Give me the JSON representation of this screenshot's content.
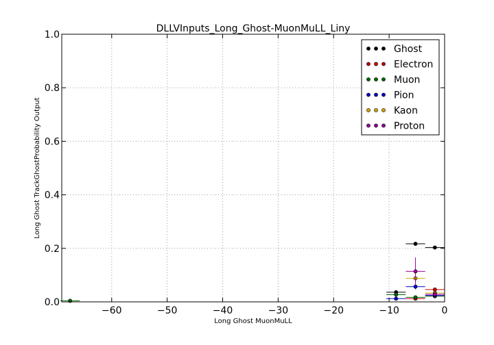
{
  "chart_data": {
    "type": "scatter",
    "title": "DLLVInputs_Long_Ghost-MuonMuLL_Liny",
    "xlabel": "Long Ghost MuonMuLL",
    "ylabel": "Long Ghost TrackGhostProbability Output",
    "xlim": [
      -69,
      0
    ],
    "ylim": [
      0,
      1.0
    ],
    "x_ticks": [
      -60,
      -50,
      -40,
      -30,
      -20,
      -10,
      0
    ],
    "x_tick_labels": [
      "−60",
      "−50",
      "−40",
      "−30",
      "−20",
      "−10",
      "0"
    ],
    "y_ticks": [
      0.0,
      0.2,
      0.4,
      0.6,
      0.8,
      1.0
    ],
    "y_tick_labels": [
      "0.0",
      "0.2",
      "0.4",
      "0.6",
      "0.8",
      "1.0"
    ],
    "grid": true,
    "legend_position": "top-right",
    "series": [
      {
        "name": "Ghost",
        "color": "#000000",
        "points": [
          {
            "x": -8.75,
            "xerr": 1.75,
            "y": 0.036,
            "yerr": 0.005
          },
          {
            "x": -5.25,
            "xerr": 1.75,
            "y": 0.217,
            "yerr": 0.003
          },
          {
            "x": -1.75,
            "xerr": 1.75,
            "y": 0.203,
            "yerr": 0.002
          }
        ]
      },
      {
        "name": "Electron",
        "color": "#cc0000",
        "points": [
          {
            "x": -5.25,
            "xerr": 1.75,
            "y": 0.012,
            "yerr": 0.004
          },
          {
            "x": -1.75,
            "xerr": 1.75,
            "y": 0.046,
            "yerr": 0.005
          }
        ]
      },
      {
        "name": "Muon",
        "color": "#006600",
        "points": [
          {
            "x": -67.5,
            "xerr": 1.75,
            "y": 0.004,
            "yerr": 0.002
          },
          {
            "x": -8.75,
            "xerr": 1.75,
            "y": 0.027,
            "yerr": 0.004
          },
          {
            "x": -5.25,
            "xerr": 1.75,
            "y": 0.017,
            "yerr": 0.003
          },
          {
            "x": -1.75,
            "xerr": 1.75,
            "y": 0.021,
            "yerr": 0.003
          }
        ]
      },
      {
        "name": "Pion",
        "color": "#0000cc",
        "points": [
          {
            "x": -8.75,
            "xerr": 1.75,
            "y": 0.012,
            "yerr": 0.004
          },
          {
            "x": -5.25,
            "xerr": 1.75,
            "y": 0.057,
            "yerr": 0.01
          },
          {
            "x": -1.75,
            "xerr": 1.75,
            "y": 0.024,
            "yerr": 0.004
          }
        ]
      },
      {
        "name": "Kaon",
        "color": "#ccaa00",
        "points": [
          {
            "x": -5.25,
            "xerr": 1.75,
            "y": 0.088,
            "yerr": 0.02
          },
          {
            "x": -1.75,
            "xerr": 1.75,
            "y": 0.033,
            "yerr": 0.006
          }
        ]
      },
      {
        "name": "Proton",
        "color": "#990099",
        "points": [
          {
            "x": -5.25,
            "xerr": 1.75,
            "y": 0.114,
            "yerr": 0.052
          },
          {
            "x": -1.75,
            "xerr": 1.75,
            "y": 0.028,
            "yerr": 0.01
          }
        ]
      }
    ]
  }
}
